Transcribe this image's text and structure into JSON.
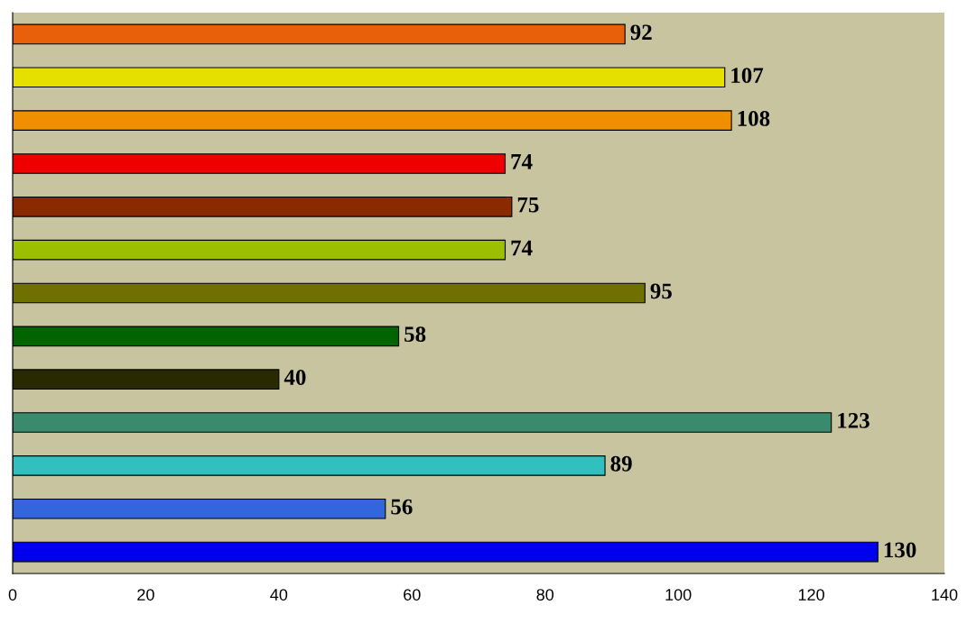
{
  "chart_data": {
    "type": "bar",
    "orientation": "horizontal",
    "categories": [
      null,
      null,
      null,
      null,
      null,
      null,
      null,
      null,
      null,
      null,
      null,
      null,
      null
    ],
    "values": [
      92,
      107,
      108,
      74,
      75,
      74,
      95,
      58,
      40,
      123,
      89,
      56,
      130
    ],
    "colors": [
      "#e8600a",
      "#e6e000",
      "#f09000",
      "#ee0000",
      "#8b2a00",
      "#9cbf00",
      "#707000",
      "#006400",
      "#2a2a00",
      "#3a8a6e",
      "#30c0c0",
      "#3366dd",
      "#0000ee"
    ],
    "xlim": [
      0,
      140
    ],
    "xticks": [
      0,
      20,
      40,
      60,
      80,
      100,
      120,
      140
    ],
    "data_labels": true,
    "grid": false,
    "legend": false,
    "tick_labels": "x"
  }
}
